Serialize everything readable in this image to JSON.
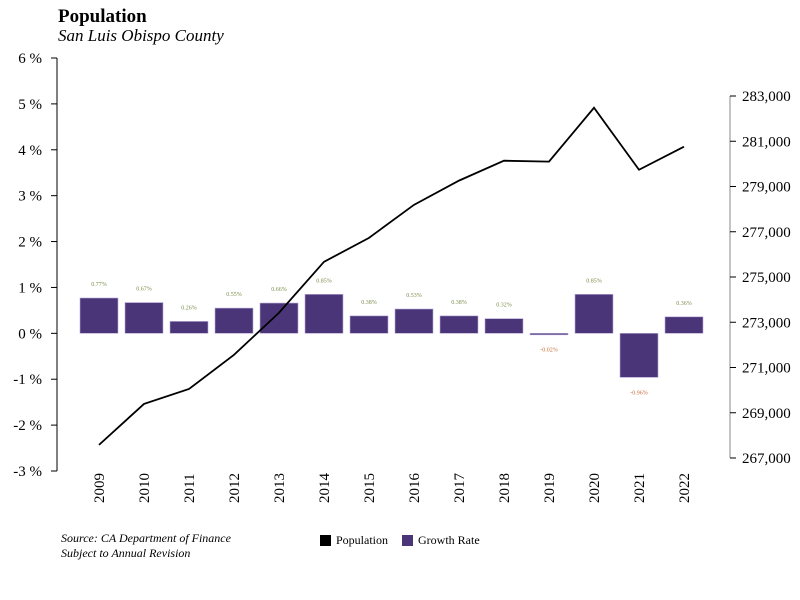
{
  "chart_data": {
    "type": "bar+line",
    "title": "Population",
    "subtitle": "San Luis Obispo County",
    "categories": [
      "2009",
      "2010",
      "2011",
      "2012",
      "2013",
      "2014",
      "2015",
      "2016",
      "2017",
      "2018",
      "2019",
      "2020",
      "2021",
      "2022"
    ],
    "series": [
      {
        "name": "Growth Rate",
        "type": "bar",
        "axis": "left",
        "color": "#4b3579",
        "values": [
          0.77,
          0.67,
          0.26,
          0.55,
          0.66,
          0.85,
          0.38,
          0.53,
          0.38,
          0.32,
          -0.02,
          0.85,
          -0.96,
          0.36
        ],
        "labels": [
          "0.77%",
          "0.67%",
          "0.26%",
          "0.55%",
          "0.66%",
          "0.85%",
          "0.38%",
          "0.53%",
          "0.38%",
          "0.32%",
          "-0.02%",
          "0.85%",
          "-0.96%",
          "0.36%"
        ]
      },
      {
        "name": "Population",
        "type": "line",
        "axis": "right",
        "color": "#000000",
        "values": [
          267580,
          269390,
          270050,
          271560,
          273420,
          275670,
          276730,
          278190,
          279260,
          280140,
          280100,
          282480,
          279740,
          280760
        ]
      }
    ],
    "left_axis": {
      "ylim": [
        -3,
        6
      ],
      "ticks": [
        -3,
        -2,
        -1,
        0,
        1,
        2,
        3,
        4,
        5,
        6
      ],
      "tick_labels": [
        "-3 %",
        "-2 %",
        "-1 %",
        "0 %",
        "1 %",
        "2 %",
        "3 %",
        "4 %",
        "5 %",
        "6 %"
      ]
    },
    "right_axis": {
      "ylim": [
        267000,
        283000
      ],
      "ticks": [
        267000,
        269000,
        271000,
        273000,
        275000,
        277000,
        279000,
        281000,
        283000
      ],
      "tick_labels": [
        "267,000",
        "269,000",
        "271,000",
        "273,000",
        "275,000",
        "277,000",
        "279,000",
        "281,000",
        "283,000"
      ]
    },
    "label_colors": {
      "positive": "#7a8c4a",
      "negative": "#c8703a"
    },
    "legend": [
      {
        "label": "Population",
        "color": "#000000"
      },
      {
        "label": "Growth Rate",
        "color": "#4b3579"
      }
    ],
    "legend_position": "bottom-center",
    "grid": false
  },
  "footer": {
    "source": "Source: CA Department of Finance",
    "note": "Subject to Annual Revision"
  }
}
